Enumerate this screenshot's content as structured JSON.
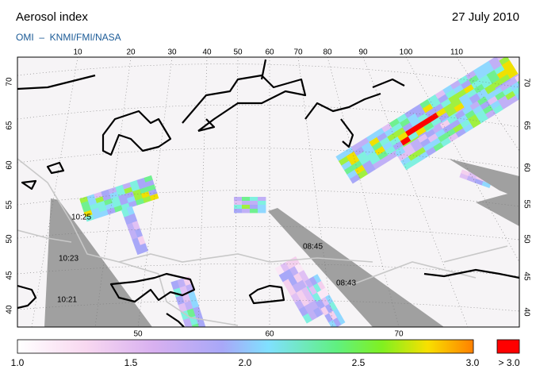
{
  "header": {
    "title": "Aerosol index",
    "date": "27 July 2010",
    "source": "OMI  –  KNMI/FMI/NASA"
  },
  "map": {
    "lon_top": [
      "10",
      "20",
      "30",
      "40",
      "50",
      "60",
      "70",
      "80",
      "90",
      "100",
      "110"
    ],
    "lon_bottom": [
      "50",
      "60",
      "70"
    ],
    "lat_left": [
      "70",
      "65",
      "60",
      "55",
      "50",
      "45",
      "40"
    ],
    "lat_right": [
      "70",
      "65",
      "60",
      "55",
      "50",
      "45",
      "40"
    ],
    "orbit_times": [
      "10:25",
      "10:23",
      "10:21",
      "08:45",
      "08:43"
    ]
  },
  "colorbar": {
    "labels": [
      "1.0",
      "1.5",
      "2.0",
      "2.5",
      "3.0"
    ],
    "overflow_label": "> 3.0"
  }
}
